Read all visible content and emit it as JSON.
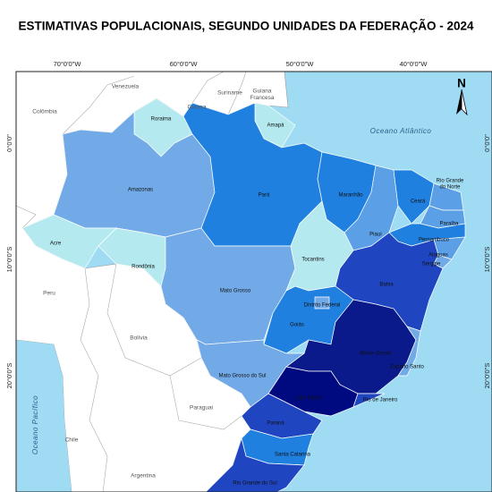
{
  "title": "ESTIMATIVAS POPULACIONAIS, SEGUNDO UNIDADES DA FEDERAÇÃO - 2024",
  "graticule": {
    "top": [
      "70°0'0\"W",
      "60°0'0\"W",
      "50°0'0\"W",
      "40°0'0\"W"
    ],
    "left": [
      "0°0'0\"",
      "10°0'0\"S",
      "20°0'0\"S"
    ],
    "right": [
      "0°0'0\"",
      "10°0'0\"S",
      "20°0'0\"S"
    ]
  },
  "countries": [
    "Venezuela",
    "Suriname",
    "Guiana",
    [
      "Guiana",
      "Francesa"
    ],
    "Colômbia",
    "Peru",
    "Bolívia",
    "Paraguai",
    "Chile",
    "Argentina"
  ],
  "oceans": [
    "Oceano Atlântico",
    "Oceano Pacífico"
  ],
  "north": "N",
  "states": [
    {
      "name": "Roraima",
      "color": "#b3e9ef"
    },
    {
      "name": "Amapá",
      "color": "#b3e9ef"
    },
    {
      "name": "Amazonas",
      "color": "#72aae8"
    },
    {
      "name": "Pará",
      "color": "#2080e0"
    },
    {
      "name": "Acre",
      "color": "#b3e9ef"
    },
    {
      "name": "Rondônia",
      "color": "#b3e9ef"
    },
    {
      "name": "Mato Grosso",
      "color": "#72aae8"
    },
    {
      "name": "Maranhão",
      "color": "#2080e0"
    },
    {
      "name": "Piauí",
      "color": "#5b9fe6"
    },
    {
      "name": "Ceará",
      "color": "#2080e0"
    },
    {
      "name": [
        "Rio Grande",
        "do Norte"
      ],
      "color": "#5b9fe6"
    },
    {
      "name": "Paraíba",
      "color": "#5b9fe6"
    },
    {
      "name": "Pernambuco",
      "color": "#2080e0"
    },
    {
      "name": "Alagoas",
      "color": "#5b9fe6"
    },
    {
      "name": "Sergipe",
      "color": "#72aae8"
    },
    {
      "name": "Tocantins",
      "color": "#b3e9ef"
    },
    {
      "name": "Bahia",
      "color": "#1f45c0"
    },
    {
      "name": "Goiás",
      "color": "#2080e0"
    },
    {
      "name": "Distrito Federal",
      "color": "#72aae8"
    },
    {
      "name": "Minas Gerais",
      "color": "#0a1a8a"
    },
    {
      "name": "Espírito Santo",
      "color": "#72aae8"
    },
    {
      "name": "Mato Grosso do Sul",
      "color": "#72aae8"
    },
    {
      "name": "São Paulo",
      "color": "#000a80"
    },
    {
      "name": "Rio de Janeiro",
      "color": "#1f45c0"
    },
    {
      "name": "Paraná",
      "color": "#1f45c0"
    },
    {
      "name": "Santa Catarina",
      "color": "#2080e0"
    },
    {
      "name": "Rio Grande do Sul",
      "color": "#1f45c0"
    }
  ]
}
